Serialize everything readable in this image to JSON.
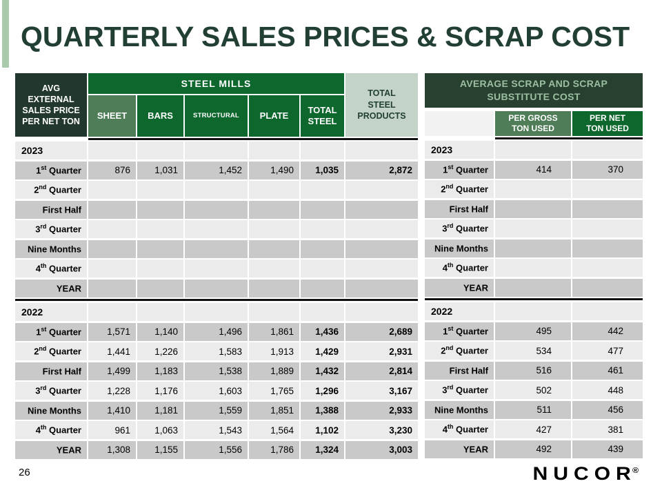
{
  "title": "QUARTERLY SALES PRICES & SCRAP COST",
  "page_number": "26",
  "logo": {
    "text": "NUCOR",
    "reg": "®"
  },
  "colors": {
    "accent_bar": "#a9cbab",
    "title_text": "#223f33",
    "dark_corner": "#22382e",
    "dark_green": "#0e672c",
    "sage_green": "#4e7d57",
    "pale_green_header": "#c3d3c7",
    "scrap_title_bg": "#27402f",
    "scrap_title_text": "#9cbfa2",
    "row_light": "#ebebeb",
    "row_gray": "#c9c9c9"
  },
  "left_table": {
    "corner_header": "AVG\nEXTERNAL\nSALES PRICE\nPER NET TON",
    "group_header": "STEEL MILLS",
    "columns": [
      "SHEET",
      "BARS",
      "STRUCTURAL",
      "PLATE",
      "TOTAL\nSTEEL"
    ],
    "total_col_header": "TOTAL\nSTEEL\nPRODUCTS",
    "sections": [
      {
        "year": "2023",
        "rows": [
          {
            "label": {
              "pre": "1",
              "sup": "st",
              "post": " Quarter"
            },
            "values": [
              "876",
              "1,031",
              "1,452",
              "1,490",
              "1,035",
              "2,872"
            ]
          },
          {
            "label": {
              "pre": "2",
              "sup": "nd",
              "post": " Quarter"
            },
            "values": [
              "",
              "",
              "",
              "",
              "",
              ""
            ]
          },
          {
            "label": {
              "pre": "First Half",
              "sup": "",
              "post": ""
            },
            "values": [
              "",
              "",
              "",
              "",
              "",
              ""
            ]
          },
          {
            "label": {
              "pre": "3",
              "sup": "rd",
              "post": " Quarter"
            },
            "values": [
              "",
              "",
              "",
              "",
              "",
              ""
            ]
          },
          {
            "label": {
              "pre": "Nine Months",
              "sup": "",
              "post": ""
            },
            "values": [
              "",
              "",
              "",
              "",
              "",
              ""
            ]
          },
          {
            "label": {
              "pre": "4",
              "sup": "th",
              "post": " Quarter"
            },
            "values": [
              "",
              "",
              "",
              "",
              "",
              ""
            ]
          },
          {
            "label": {
              "pre": "YEAR",
              "sup": "",
              "post": ""
            },
            "values": [
              "",
              "",
              "",
              "",
              "",
              ""
            ]
          }
        ]
      },
      {
        "year": "2022",
        "rows": [
          {
            "label": {
              "pre": "1",
              "sup": "st",
              "post": " Quarter"
            },
            "values": [
              "1,571",
              "1,140",
              "1,496",
              "1,861",
              "1,436",
              "2,689"
            ]
          },
          {
            "label": {
              "pre": "2",
              "sup": "nd",
              "post": " Quarter"
            },
            "values": [
              "1,441",
              "1,226",
              "1,583",
              "1,913",
              "1,429",
              "2,931"
            ]
          },
          {
            "label": {
              "pre": "First Half",
              "sup": "",
              "post": ""
            },
            "values": [
              "1,499",
              "1,183",
              "1,538",
              "1,889",
              "1,432",
              "2,814"
            ]
          },
          {
            "label": {
              "pre": "3",
              "sup": "rd",
              "post": " Quarter"
            },
            "values": [
              "1,228",
              "1,176",
              "1,603",
              "1,765",
              "1,296",
              "3,167"
            ]
          },
          {
            "label": {
              "pre": "Nine Months",
              "sup": "",
              "post": ""
            },
            "values": [
              "1,410",
              "1,181",
              "1,559",
              "1,851",
              "1,388",
              "2,933"
            ]
          },
          {
            "label": {
              "pre": "4",
              "sup": "th",
              "post": " Quarter"
            },
            "values": [
              "961",
              "1,063",
              "1,543",
              "1,564",
              "1,102",
              "3,230"
            ]
          },
          {
            "label": {
              "pre": "YEAR",
              "sup": "",
              "post": ""
            },
            "values": [
              "1,308",
              "1,155",
              "1,556",
              "1,786",
              "1,324",
              "3,003"
            ]
          }
        ]
      }
    ]
  },
  "right_table": {
    "title": "AVERAGE SCRAP AND SCRAP\nSUBSTITUTE COST",
    "columns": [
      "PER GROSS\nTON USED",
      "PER NET\nTON USED"
    ],
    "sections": [
      {
        "year": "2023",
        "rows": [
          {
            "label": {
              "pre": "1",
              "sup": "st",
              "post": " Quarter"
            },
            "values": [
              "414",
              "370"
            ]
          },
          {
            "label": {
              "pre": "2",
              "sup": "nd",
              "post": " Quarter"
            },
            "values": [
              "",
              ""
            ]
          },
          {
            "label": {
              "pre": "First Half",
              "sup": "",
              "post": ""
            },
            "values": [
              "",
              ""
            ]
          },
          {
            "label": {
              "pre": "3",
              "sup": "rd",
              "post": " Quarter"
            },
            "values": [
              "",
              ""
            ]
          },
          {
            "label": {
              "pre": "Nine Months",
              "sup": "",
              "post": ""
            },
            "values": [
              "",
              ""
            ]
          },
          {
            "label": {
              "pre": "4",
              "sup": "th",
              "post": " Quarter"
            },
            "values": [
              "",
              ""
            ]
          },
          {
            "label": {
              "pre": "YEAR",
              "sup": "",
              "post": ""
            },
            "values": [
              "",
              ""
            ]
          }
        ]
      },
      {
        "year": "2022",
        "rows": [
          {
            "label": {
              "pre": "1",
              "sup": "st",
              "post": " Quarter"
            },
            "values": [
              "495",
              "442"
            ]
          },
          {
            "label": {
              "pre": "2",
              "sup": "nd",
              "post": " Quarter"
            },
            "values": [
              "534",
              "477"
            ]
          },
          {
            "label": {
              "pre": "First Half",
              "sup": "",
              "post": ""
            },
            "values": [
              "516",
              "461"
            ]
          },
          {
            "label": {
              "pre": "3",
              "sup": "rd",
              "post": " Quarter"
            },
            "values": [
              "502",
              "448"
            ]
          },
          {
            "label": {
              "pre": "Nine Months",
              "sup": "",
              "post": ""
            },
            "values": [
              "511",
              "456"
            ]
          },
          {
            "label": {
              "pre": "4",
              "sup": "th",
              "post": " Quarter"
            },
            "values": [
              "427",
              "381"
            ]
          },
          {
            "label": {
              "pre": "YEAR",
              "sup": "",
              "post": ""
            },
            "values": [
              "492",
              "439"
            ]
          }
        ]
      }
    ]
  }
}
